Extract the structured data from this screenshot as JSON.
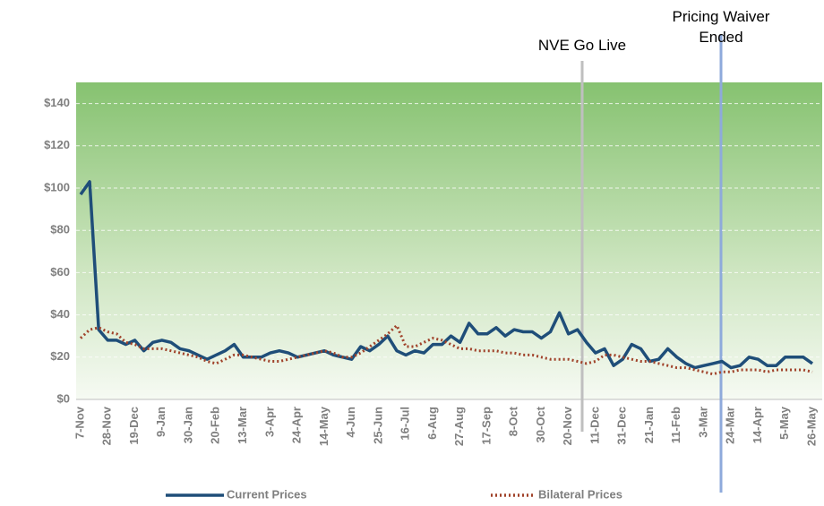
{
  "chart_data": {
    "type": "line",
    "annotations": [
      "NVE Go Live",
      "Pricing Waiver Ended"
    ],
    "categories": [
      "7-Nov",
      null,
      null,
      "28-Nov",
      null,
      null,
      "19-Dec",
      null,
      null,
      "9-Jan",
      null,
      null,
      "30-Jan",
      null,
      null,
      "20-Feb",
      null,
      null,
      "13-Mar",
      null,
      null,
      "3-Apr",
      null,
      null,
      "24-Apr",
      null,
      null,
      "14-May",
      null,
      null,
      "4-Jun",
      null,
      null,
      "25-Jun",
      null,
      null,
      "16-Jul",
      null,
      null,
      "6-Aug",
      null,
      null,
      "27-Aug",
      null,
      null,
      "17-Sep",
      null,
      null,
      "8-Oct",
      null,
      null,
      "30-Oct",
      null,
      null,
      "20-Nov",
      null,
      null,
      "11-Dec",
      null,
      null,
      "31-Dec",
      null,
      null,
      "21-Jan",
      null,
      null,
      "11-Feb",
      null,
      null,
      "3-Mar",
      null,
      null,
      "24-Mar",
      null,
      null,
      "14-Apr",
      null,
      null,
      "5-May",
      null,
      null,
      "26-May"
    ],
    "series": [
      {
        "name": "Current Prices",
        "color": "#1f4e79",
        "style": "solid",
        "values": [
          97,
          103,
          33,
          28,
          28,
          26,
          28,
          23,
          27,
          28,
          27,
          24,
          23,
          21,
          19,
          21,
          23,
          26,
          20,
          20,
          20,
          22,
          23,
          22,
          20,
          21,
          22,
          23,
          21,
          20,
          19,
          25,
          23,
          26,
          30,
          23,
          21,
          23,
          22,
          26,
          26,
          30,
          27,
          36,
          31,
          31,
          34,
          30,
          33,
          32,
          32,
          29,
          32,
          41,
          31,
          33,
          27,
          22,
          24,
          16,
          19,
          26,
          24,
          18,
          19,
          24,
          20,
          17,
          15,
          16,
          17,
          18,
          15,
          16,
          20,
          19,
          16,
          16,
          20,
          20,
          20,
          17
        ]
      },
      {
        "name": "Bilateral Prices",
        "color": "#a0422a",
        "style": "dotted",
        "values": [
          29,
          33,
          34,
          32,
          31,
          27,
          26,
          24,
          24,
          24,
          23,
          22,
          21,
          20,
          18,
          17,
          19,
          21,
          21,
          20,
          19,
          18,
          18,
          19,
          20,
          21,
          22,
          23,
          22,
          20,
          20,
          22,
          25,
          28,
          31,
          35,
          25,
          25,
          27,
          29,
          28,
          26,
          24,
          24,
          23,
          23,
          23,
          22,
          22,
          21,
          21,
          20,
          19,
          19,
          19,
          18,
          17,
          18,
          21,
          21,
          20,
          19,
          18,
          18,
          17,
          16,
          15,
          15,
          14,
          13,
          12,
          13,
          13,
          14,
          14,
          14,
          13,
          14,
          14,
          14,
          14,
          13
        ]
      }
    ],
    "ylim": [
      0,
      150
    ],
    "yticks": [
      {
        "value": 0,
        "label": "$0"
      },
      {
        "value": 20,
        "label": "$20"
      },
      {
        "value": 40,
        "label": "$40"
      },
      {
        "value": 60,
        "label": "$60"
      },
      {
        "value": 80,
        "label": "$80"
      },
      {
        "value": 100,
        "label": "$100"
      },
      {
        "value": 120,
        "label": "$120"
      },
      {
        "value": 140,
        "label": "$140"
      }
    ],
    "grid": true
  }
}
